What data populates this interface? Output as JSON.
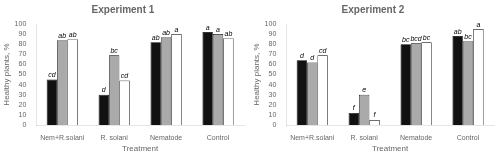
{
  "chart_data": [
    {
      "type": "bar",
      "title": "Experiment 1",
      "categories": [
        "Nem+R.solani",
        "R. solani",
        "Nematode",
        "Control"
      ],
      "series": [
        {
          "color": "#111111",
          "values": [
            45,
            30,
            82,
            92
          ],
          "value_labels": [
            "cd",
            "d",
            "ab",
            "a"
          ]
        },
        {
          "color": "#aaaaaa",
          "values": [
            84,
            69,
            87,
            90
          ],
          "value_labels": [
            "ab",
            "bc",
            "ab",
            "a"
          ]
        },
        {
          "color": "#ffffff",
          "values": [
            85,
            44,
            90,
            86
          ],
          "value_labels": [
            "ab",
            "cd",
            "a",
            "ab"
          ]
        }
      ],
      "xlabel": "Treatment",
      "ylabel": "Healthy plants, %",
      "ylim": [
        0,
        100
      ],
      "yticks": [
        0,
        10,
        20,
        30,
        40,
        50,
        60,
        70,
        80,
        90,
        100
      ],
      "grid": false
    },
    {
      "type": "bar",
      "title": "Experiment 2",
      "categories": [
        "Nem+R.solani",
        "R. solani",
        "Nematode",
        "Control"
      ],
      "series": [
        {
          "color": "#111111",
          "values": [
            64,
            12,
            80,
            88
          ],
          "value_labels": [
            "d",
            "f",
            "bc",
            "ab"
          ]
        },
        {
          "color": "#aaaaaa",
          "values": [
            62,
            30,
            81,
            83
          ],
          "value_labels": [
            "d",
            "e",
            "bcd",
            "bc"
          ]
        },
        {
          "color": "#ffffff",
          "values": [
            69,
            5,
            82,
            95
          ],
          "value_labels": [
            "cd",
            "f",
            "bc",
            "a"
          ]
        }
      ],
      "xlabel": "Treatment",
      "ylabel": "Healthy plants, %",
      "ylim": [
        0,
        100
      ],
      "yticks": [
        0,
        10,
        20,
        30,
        40,
        50,
        60,
        70,
        80,
        90,
        100
      ],
      "grid": false
    }
  ]
}
